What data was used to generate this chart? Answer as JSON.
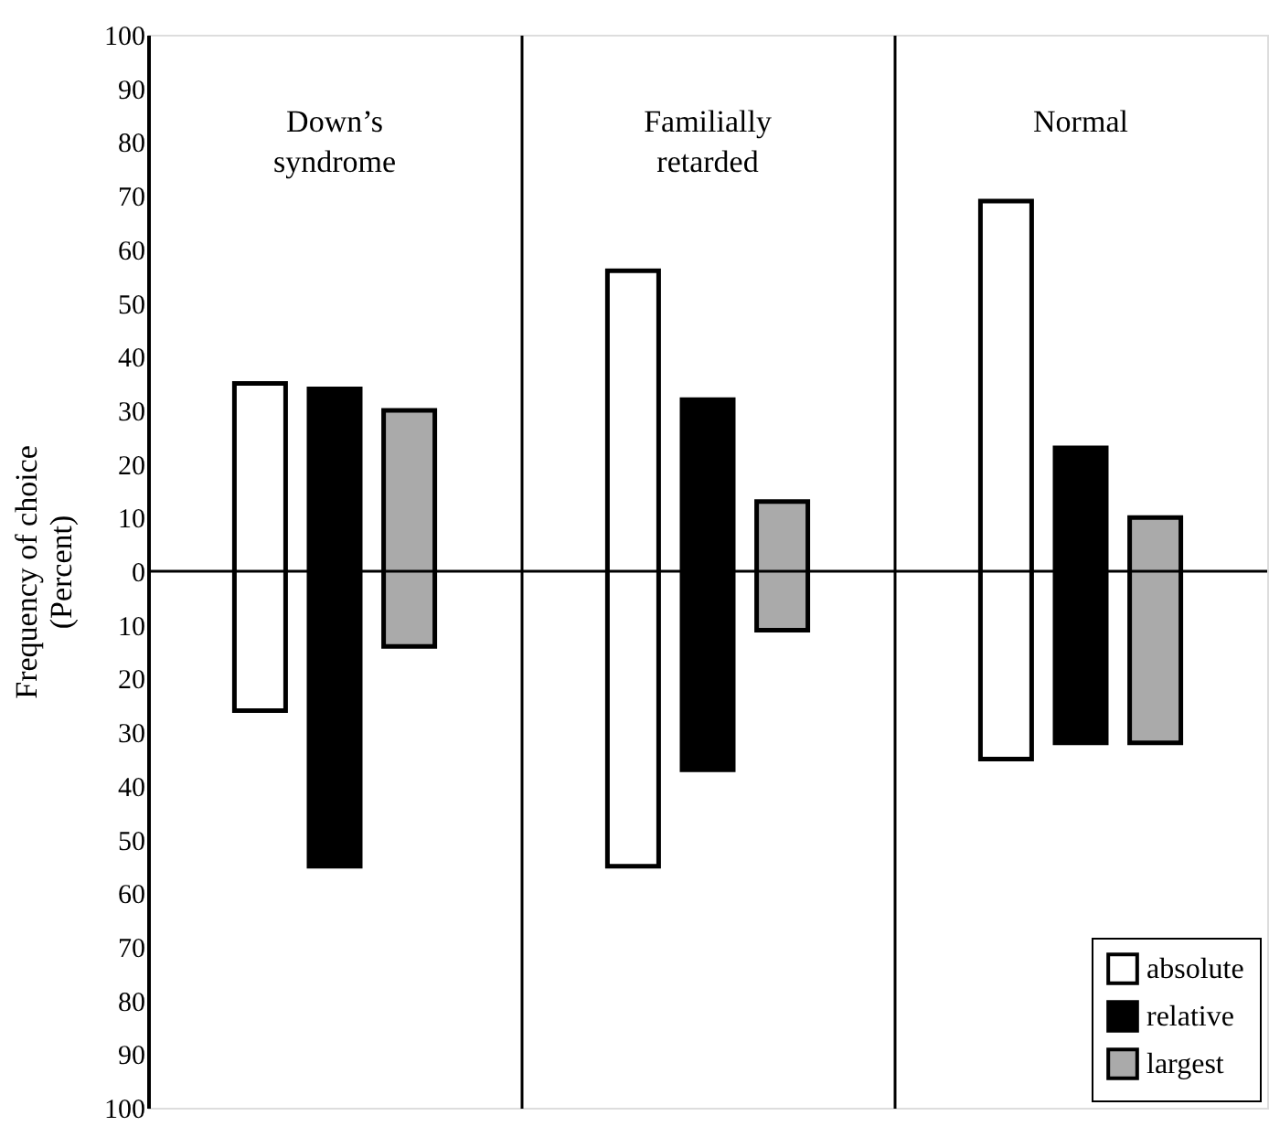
{
  "chart_data": {
    "type": "bar",
    "ylabel": "Frequency of choice (Percent)",
    "categories": [
      "Down’s syndrome",
      "Familially retarded",
      "Normal"
    ],
    "series": [
      {
        "name": "absolute",
        "color": "#ffffff",
        "base": [
          -26,
          -55,
          -35
        ],
        "values": [
          61,
          111,
          104
        ]
      },
      {
        "name": "relative",
        "color": "#000000",
        "base": [
          -55,
          -37,
          -32
        ],
        "values": [
          89,
          69,
          55
        ]
      },
      {
        "name": "largest",
        "color": "#aaaaaa",
        "base": [
          -14,
          -11,
          -32
        ],
        "values": [
          44,
          24,
          42
        ]
      }
    ],
    "ylim": [
      -100,
      100
    ],
    "yticks": [
      {
        "value": -100,
        "label": "100"
      },
      {
        "value": -90,
        "label": "90"
      },
      {
        "value": -80,
        "label": "80"
      },
      {
        "value": -70,
        "label": "70"
      },
      {
        "value": -60,
        "label": "60"
      },
      {
        "value": -50,
        "label": "50"
      },
      {
        "value": -40,
        "label": "40"
      },
      {
        "value": -30,
        "label": "30"
      },
      {
        "value": -20,
        "label": "20"
      },
      {
        "value": -10,
        "label": "10"
      },
      0,
      10,
      20,
      30,
      40,
      50,
      60,
      70,
      80,
      90,
      100
    ],
    "ref_lines": [
      {
        "axis": "y",
        "value": 0
      }
    ],
    "legend": "bottom right"
  }
}
